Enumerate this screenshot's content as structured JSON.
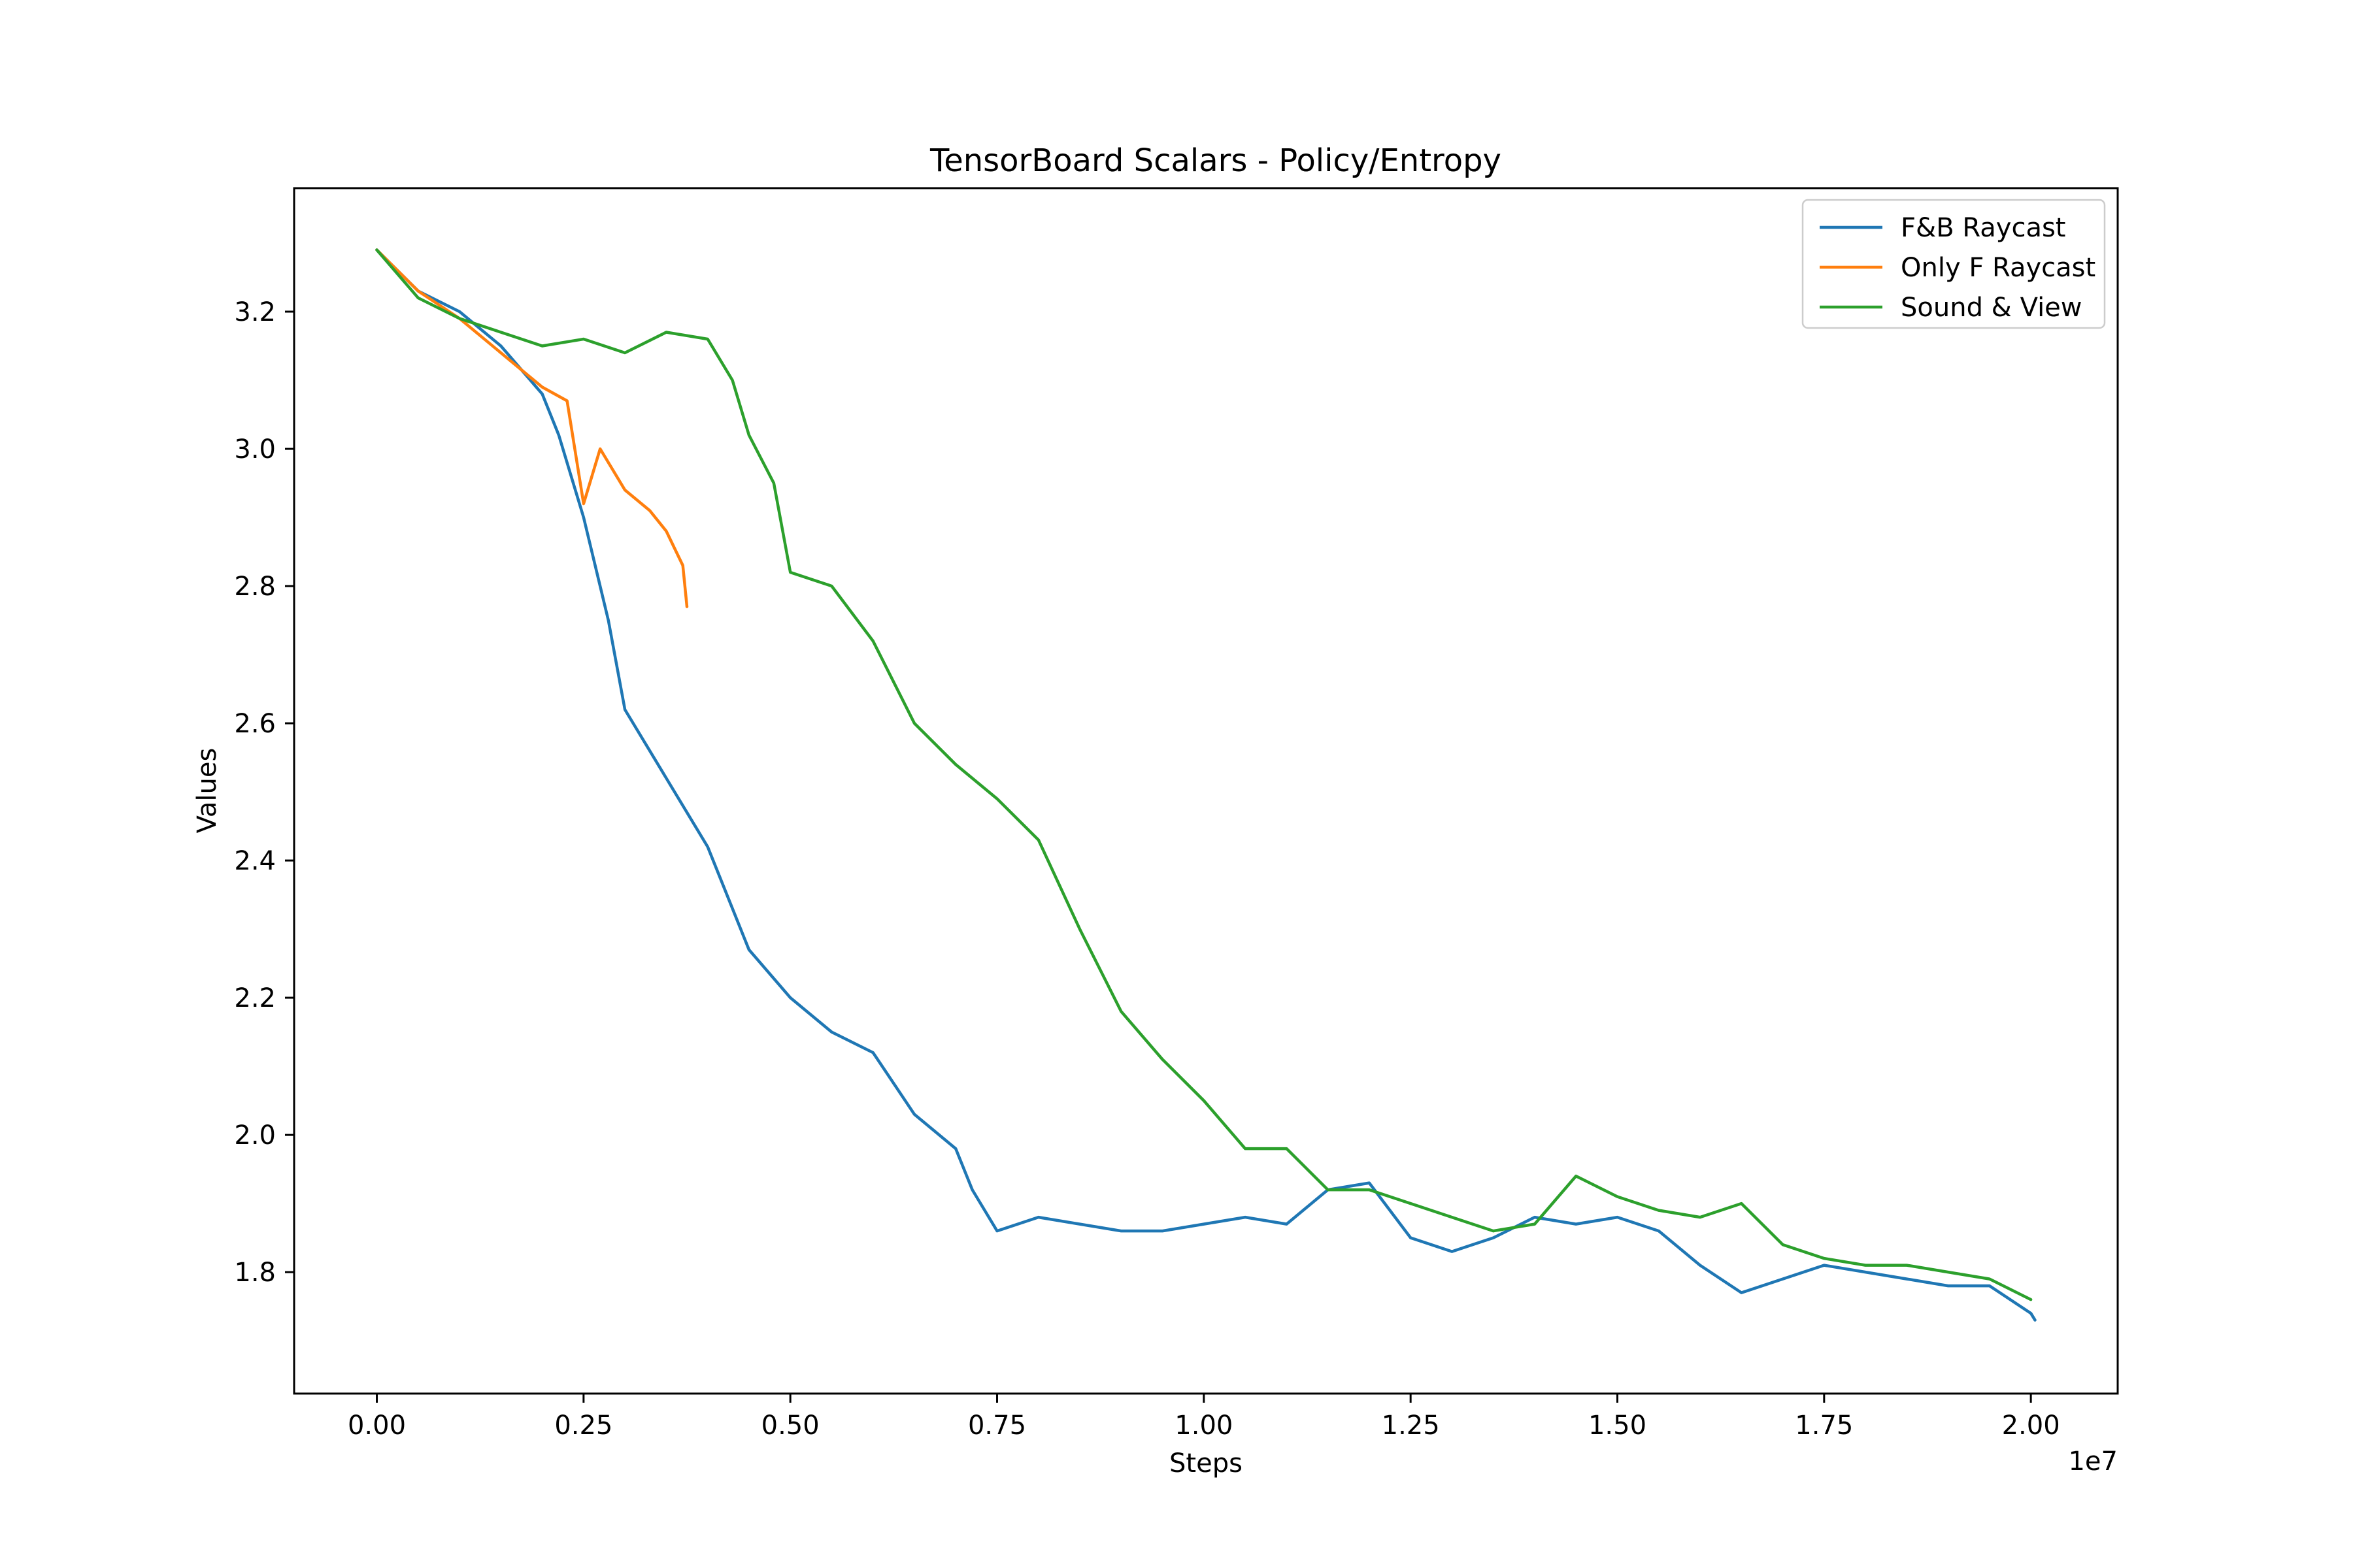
{
  "chart_data": {
    "type": "line",
    "title": "TensorBoard Scalars - Policy/Entropy",
    "xlabel": "Steps",
    "ylabel": "Values",
    "x_offset_label": "1e7",
    "xlim": [
      -0.1,
      2.105
    ],
    "ylim": [
      1.623,
      3.38
    ],
    "xticks": [
      {
        "value": 0.0,
        "label": "0.00"
      },
      {
        "value": 0.25,
        "label": "0.25"
      },
      {
        "value": 0.5,
        "label": "0.50"
      },
      {
        "value": 0.75,
        "label": "0.75"
      },
      {
        "value": 1.0,
        "label": "1.00"
      },
      {
        "value": 1.25,
        "label": "1.25"
      },
      {
        "value": 1.5,
        "label": "1.50"
      },
      {
        "value": 1.75,
        "label": "1.75"
      },
      {
        "value": 2.0,
        "label": "2.00"
      }
    ],
    "yticks": [
      {
        "value": 1.8,
        "label": "1.8"
      },
      {
        "value": 2.0,
        "label": "2.0"
      },
      {
        "value": 2.2,
        "label": "2.2"
      },
      {
        "value": 2.4,
        "label": "2.4"
      },
      {
        "value": 2.6,
        "label": "2.6"
      },
      {
        "value": 2.8,
        "label": "2.8"
      },
      {
        "value": 3.0,
        "label": "3.0"
      },
      {
        "value": 3.2,
        "label": "3.2"
      }
    ],
    "grid": false,
    "legend_position": "top-right",
    "series": [
      {
        "name": "F&B Raycast",
        "color": "#1f77b4",
        "x": [
          0.0,
          0.05,
          0.1,
          0.15,
          0.2,
          0.22,
          0.25,
          0.28,
          0.3,
          0.35,
          0.4,
          0.45,
          0.5,
          0.55,
          0.6,
          0.65,
          0.7,
          0.72,
          0.75,
          0.8,
          0.85,
          0.9,
          0.95,
          1.0,
          1.05,
          1.1,
          1.15,
          1.2,
          1.25,
          1.3,
          1.35,
          1.4,
          1.45,
          1.5,
          1.55,
          1.6,
          1.65,
          1.7,
          1.75,
          1.8,
          1.85,
          1.9,
          1.95,
          2.0,
          2.005
        ],
        "y": [
          3.29,
          3.23,
          3.2,
          3.15,
          3.08,
          3.02,
          2.9,
          2.75,
          2.62,
          2.52,
          2.42,
          2.27,
          2.2,
          2.15,
          2.12,
          2.03,
          1.98,
          1.92,
          1.86,
          1.88,
          1.87,
          1.86,
          1.86,
          1.87,
          1.88,
          1.87,
          1.92,
          1.93,
          1.85,
          1.83,
          1.85,
          1.88,
          1.87,
          1.88,
          1.86,
          1.81,
          1.77,
          1.79,
          1.81,
          1.8,
          1.79,
          1.78,
          1.78,
          1.74,
          1.73
        ]
      },
      {
        "name": "Only F Raycast",
        "color": "#ff7f0e",
        "x": [
          0.0,
          0.05,
          0.1,
          0.15,
          0.2,
          0.23,
          0.25,
          0.27,
          0.3,
          0.33,
          0.35,
          0.37,
          0.375
        ],
        "y": [
          3.29,
          3.23,
          3.19,
          3.14,
          3.09,
          3.07,
          2.92,
          3.0,
          2.94,
          2.91,
          2.88,
          2.83,
          2.77
        ]
      },
      {
        "name": "Sound & View",
        "color": "#2ca02c",
        "x": [
          0.0,
          0.05,
          0.1,
          0.15,
          0.2,
          0.25,
          0.3,
          0.35,
          0.4,
          0.43,
          0.45,
          0.48,
          0.5,
          0.55,
          0.6,
          0.65,
          0.7,
          0.75,
          0.8,
          0.85,
          0.9,
          0.95,
          1.0,
          1.05,
          1.1,
          1.15,
          1.2,
          1.25,
          1.3,
          1.35,
          1.4,
          1.45,
          1.5,
          1.55,
          1.6,
          1.65,
          1.7,
          1.75,
          1.8,
          1.85,
          1.9,
          1.95,
          2.0
        ],
        "y": [
          3.29,
          3.22,
          3.19,
          3.17,
          3.15,
          3.16,
          3.14,
          3.17,
          3.16,
          3.1,
          3.02,
          2.95,
          2.82,
          2.8,
          2.72,
          2.6,
          2.54,
          2.49,
          2.43,
          2.3,
          2.18,
          2.11,
          2.05,
          1.98,
          1.98,
          1.92,
          1.92,
          1.9,
          1.88,
          1.86,
          1.87,
          1.94,
          1.91,
          1.89,
          1.88,
          1.9,
          1.84,
          1.82,
          1.81,
          1.81,
          1.8,
          1.79,
          1.76
        ]
      }
    ]
  }
}
